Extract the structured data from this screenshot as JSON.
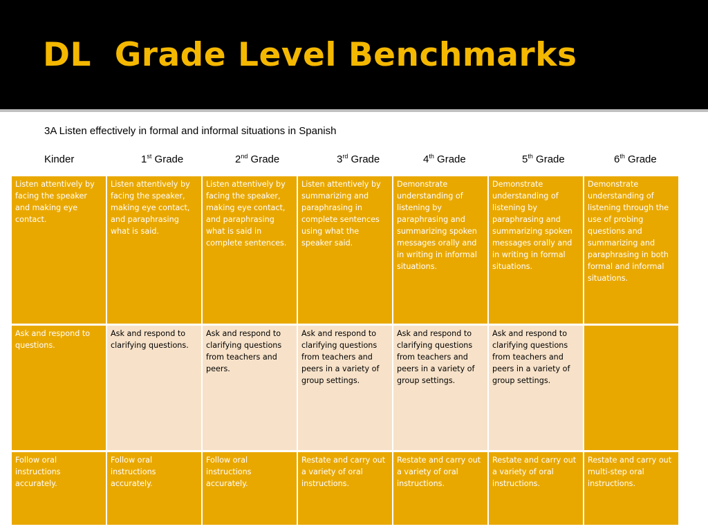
{
  "title": "DL  Grade Level Benchmarks",
  "subtitle": "3A Listen effectively in formal and informal situations in Spanish",
  "grades": [
    {
      "num": "",
      "sup": "",
      "text": "Kinder"
    },
    {
      "num": "1",
      "sup": "st",
      "text": " Grade"
    },
    {
      "num": "2",
      "sup": "nd",
      "text": " Grade"
    },
    {
      "num": "3",
      "sup": "rd",
      "text": " Grade"
    },
    {
      "num": "4",
      "sup": "th",
      "text": " Grade"
    },
    {
      "num": "5",
      "sup": "th",
      "text": " Grade"
    },
    {
      "num": "6",
      "sup": "th",
      "text": " Grade"
    }
  ],
  "colors": {
    "title": "#f5b800",
    "dark_cell": "#e9a800",
    "light_cell": "#f7e2c9"
  },
  "rows": [
    [
      {
        "text": "Listen attentively by facing the speaker and making eye contact.",
        "style": "dark"
      },
      {
        "text": "Listen attentively by facing the speaker, making eye contact, and paraphrasing what is said.",
        "style": "dark"
      },
      {
        "text": "Listen attentively by facing the speaker, making eye contact, and paraphrasing what is said in complete sentences.",
        "style": "dark"
      },
      {
        "text": "Listen attentively by summarizing and paraphrasing in complete sentences using what the speaker said.",
        "style": "dark"
      },
      {
        "text": "Demonstrate understanding of listening by paraphrasing and summarizing spoken messages orally and in writing in informal situations.",
        "style": "dark"
      },
      {
        "text": "Demonstrate understanding of listening by paraphrasing and summarizing spoken messages orally and in writing in formal situations.",
        "style": "dark"
      },
      {
        "text": "Demonstrate understanding of listening through the use of probing questions and summarizing and paraphrasing in both formal and informal situations.",
        "style": "dark"
      }
    ],
    [
      {
        "text": "Ask and respond to questions.",
        "style": "dark"
      },
      {
        "text": "Ask and respond to clarifying questions.",
        "style": "light"
      },
      {
        "text": "Ask and respond to clarifying questions from teachers and peers.",
        "style": "light"
      },
      {
        "text": "Ask and respond to clarifying questions from teachers and peers in a variety of group settings.",
        "style": "light"
      },
      {
        "text": "Ask and respond to clarifying questions from teachers and peers in a variety of group settings.",
        "style": "light"
      },
      {
        "text": "Ask and respond to clarifying questions from teachers and peers in a variety of group settings.",
        "style": "light"
      },
      {
        "text": "",
        "style": "dark"
      }
    ],
    [
      {
        "text": "Follow oral instructions accurately.",
        "style": "dark"
      },
      {
        "text": "Follow oral instructions accurately.",
        "style": "dark"
      },
      {
        "text": "Follow oral instructions accurately.",
        "style": "dark"
      },
      {
        "text": "Restate and carry out a variety of oral instructions.",
        "style": "dark"
      },
      {
        "text": "Restate and carry out a variety of oral instructions.",
        "style": "dark"
      },
      {
        "text": "Restate and carry out a variety of oral instructions.",
        "style": "dark"
      },
      {
        "text": "Restate and carry out multi-step oral instructions.",
        "style": "dark"
      }
    ]
  ]
}
